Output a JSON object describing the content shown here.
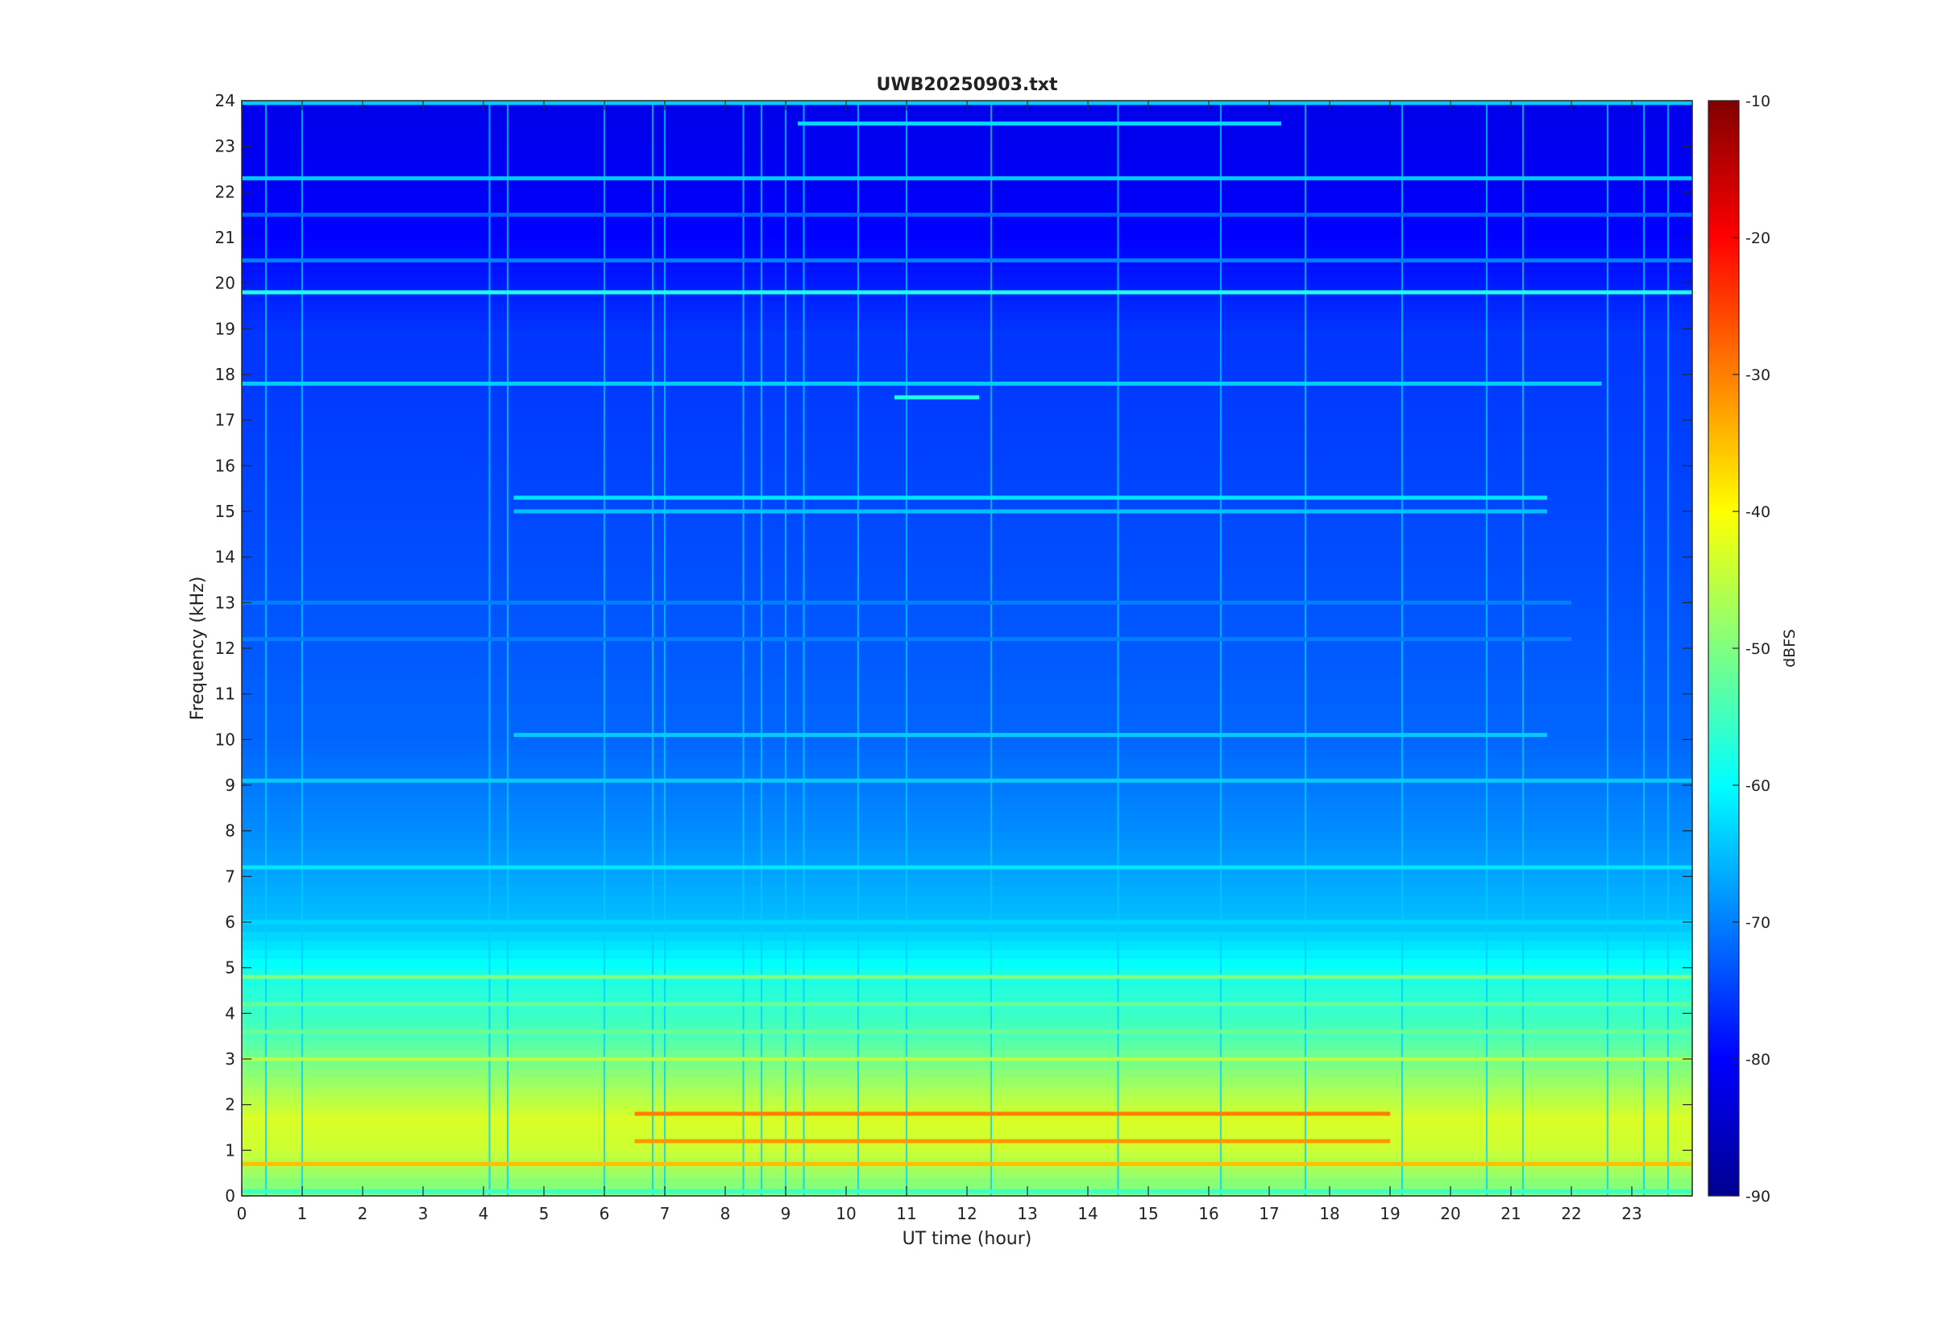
{
  "chart_data": {
    "type": "heatmap",
    "title": "UWB20250903.txt",
    "xlabel": "UT time (hour)",
    "ylabel": "Frequency (kHz)",
    "xlim": [
      0,
      24
    ],
    "ylim": [
      0,
      24
    ],
    "x_ticks": [
      "0",
      "1",
      "2",
      "3",
      "4",
      "5",
      "6",
      "7",
      "8",
      "9",
      "10",
      "11",
      "12",
      "13",
      "14",
      "15",
      "16",
      "17",
      "18",
      "19",
      "20",
      "21",
      "22",
      "23"
    ],
    "y_ticks": [
      "0",
      "1",
      "2",
      "3",
      "4",
      "5",
      "6",
      "7",
      "8",
      "9",
      "10",
      "11",
      "12",
      "13",
      "14",
      "15",
      "16",
      "17",
      "18",
      "19",
      "20",
      "21",
      "22",
      "23",
      "24"
    ],
    "colorbar": {
      "label": "dBFS",
      "range": [
        -90,
        -10
      ],
      "ticks": [
        "-10",
        "-20",
        "-30",
        "-40",
        "-50",
        "-60",
        "-70",
        "-80",
        "-90"
      ],
      "colormap": "jet",
      "stops": [
        "#00008f",
        "#0000ff",
        "#00ffff",
        "#ffff00",
        "#ff0000",
        "#800000"
      ]
    },
    "background_dbfs_by_frequency": [
      {
        "freq": 0.2,
        "dbfs": -50
      },
      {
        "freq": 1.0,
        "dbfs": -44
      },
      {
        "freq": 1.7,
        "dbfs": -43
      },
      {
        "freq": 2.5,
        "dbfs": -48
      },
      {
        "freq": 3.5,
        "dbfs": -54
      },
      {
        "freq": 4.8,
        "dbfs": -58
      },
      {
        "freq": 6.0,
        "dbfs": -65
      },
      {
        "freq": 8.0,
        "dbfs": -69
      },
      {
        "freq": 10.0,
        "dbfs": -72
      },
      {
        "freq": 14.0,
        "dbfs": -74
      },
      {
        "freq": 19.0,
        "dbfs": -76
      },
      {
        "freq": 21.0,
        "dbfs": -80
      },
      {
        "freq": 24.0,
        "dbfs": -82
      }
    ],
    "tonal_lines": [
      {
        "freq": 23.95,
        "t_start": 0,
        "t_end": 24,
        "dbfs": -64
      },
      {
        "freq": 23.5,
        "t_start": 9.2,
        "t_end": 17.2,
        "dbfs": -63
      },
      {
        "freq": 22.3,
        "t_start": 0,
        "t_end": 24,
        "dbfs": -64
      },
      {
        "freq": 21.5,
        "t_start": 0,
        "t_end": 24,
        "dbfs": -72
      },
      {
        "freq": 20.5,
        "t_start": 0,
        "t_end": 24,
        "dbfs": -70
      },
      {
        "freq": 19.8,
        "t_start": 0,
        "t_end": 24,
        "dbfs": -58
      },
      {
        "freq": 17.8,
        "t_start": 0,
        "t_end": 22.5,
        "dbfs": -64
      },
      {
        "freq": 17.5,
        "t_start": 10.8,
        "t_end": 12.2,
        "dbfs": -58
      },
      {
        "freq": 15.3,
        "t_start": 4.5,
        "t_end": 21.6,
        "dbfs": -62
      },
      {
        "freq": 15.0,
        "t_start": 4.5,
        "t_end": 21.6,
        "dbfs": -65
      },
      {
        "freq": 13.0,
        "t_start": 0,
        "t_end": 22,
        "dbfs": -70
      },
      {
        "freq": 12.2,
        "t_start": 0,
        "t_end": 22,
        "dbfs": -70
      },
      {
        "freq": 10.1,
        "t_start": 4.5,
        "t_end": 21.6,
        "dbfs": -64
      },
      {
        "freq": 9.1,
        "t_start": 0,
        "t_end": 24,
        "dbfs": -64
      },
      {
        "freq": 7.2,
        "t_start": 0,
        "t_end": 24,
        "dbfs": -62
      },
      {
        "freq": 6.0,
        "t_start": 0,
        "t_end": 24,
        "dbfs": -63
      },
      {
        "freq": 4.8,
        "t_start": 0,
        "t_end": 24,
        "dbfs": -50
      },
      {
        "freq": 4.2,
        "t_start": 0,
        "t_end": 24,
        "dbfs": -52
      },
      {
        "freq": 3.6,
        "t_start": 0,
        "t_end": 24,
        "dbfs": -52
      },
      {
        "freq": 3.0,
        "t_start": 0,
        "t_end": 24,
        "dbfs": -46
      },
      {
        "freq": 1.8,
        "t_start": 6.5,
        "t_end": 19,
        "dbfs": -30
      },
      {
        "freq": 1.2,
        "t_start": 6.5,
        "t_end": 19,
        "dbfs": -32
      },
      {
        "freq": 0.7,
        "t_start": 0,
        "t_end": 24,
        "dbfs": -35
      },
      {
        "freq": 0.1,
        "t_start": 0,
        "t_end": 24,
        "dbfs": -55
      }
    ],
    "broadband_events_hours": [
      0.4,
      1.0,
      4.1,
      4.4,
      6.0,
      6.8,
      7.0,
      8.3,
      8.6,
      9.0,
      9.3,
      10.2,
      11.0,
      12.4,
      14.5,
      16.2,
      17.6,
      19.2,
      20.6,
      21.2,
      22.6,
      23.2,
      23.6
    ]
  }
}
